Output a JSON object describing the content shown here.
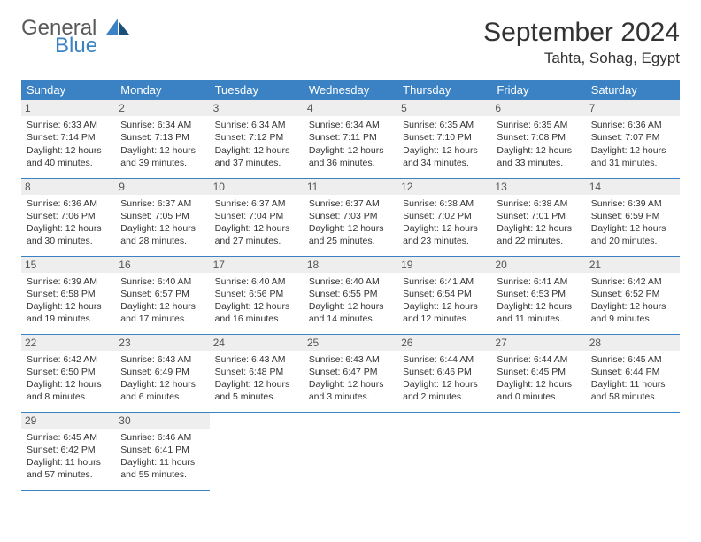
{
  "brand": {
    "line1": "General",
    "line2": "Blue"
  },
  "title": "September 2024",
  "location": "Tahta, Sohag, Egypt",
  "colors": {
    "header_bg": "#3b82c4",
    "header_text": "#ffffff",
    "daynum_bg": "#eeeeee",
    "body_text": "#333333",
    "logo_gray": "#5a5a5a",
    "logo_blue": "#3b82c4"
  },
  "typography": {
    "month_title_size": 30,
    "location_size": 17,
    "dow_size": 13,
    "cell_size": 10.5
  },
  "days_of_week": [
    "Sunday",
    "Monday",
    "Tuesday",
    "Wednesday",
    "Thursday",
    "Friday",
    "Saturday"
  ],
  "weeks": [
    [
      {
        "n": "1",
        "sunrise": "6:33 AM",
        "sunset": "7:14 PM",
        "dl_h": "12",
        "dl_m": "40"
      },
      {
        "n": "2",
        "sunrise": "6:34 AM",
        "sunset": "7:13 PM",
        "dl_h": "12",
        "dl_m": "39"
      },
      {
        "n": "3",
        "sunrise": "6:34 AM",
        "sunset": "7:12 PM",
        "dl_h": "12",
        "dl_m": "37"
      },
      {
        "n": "4",
        "sunrise": "6:34 AM",
        "sunset": "7:11 PM",
        "dl_h": "12",
        "dl_m": "36"
      },
      {
        "n": "5",
        "sunrise": "6:35 AM",
        "sunset": "7:10 PM",
        "dl_h": "12",
        "dl_m": "34"
      },
      {
        "n": "6",
        "sunrise": "6:35 AM",
        "sunset": "7:08 PM",
        "dl_h": "12",
        "dl_m": "33"
      },
      {
        "n": "7",
        "sunrise": "6:36 AM",
        "sunset": "7:07 PM",
        "dl_h": "12",
        "dl_m": "31"
      }
    ],
    [
      {
        "n": "8",
        "sunrise": "6:36 AM",
        "sunset": "7:06 PM",
        "dl_h": "12",
        "dl_m": "30"
      },
      {
        "n": "9",
        "sunrise": "6:37 AM",
        "sunset": "7:05 PM",
        "dl_h": "12",
        "dl_m": "28"
      },
      {
        "n": "10",
        "sunrise": "6:37 AM",
        "sunset": "7:04 PM",
        "dl_h": "12",
        "dl_m": "27"
      },
      {
        "n": "11",
        "sunrise": "6:37 AM",
        "sunset": "7:03 PM",
        "dl_h": "12",
        "dl_m": "25"
      },
      {
        "n": "12",
        "sunrise": "6:38 AM",
        "sunset": "7:02 PM",
        "dl_h": "12",
        "dl_m": "23"
      },
      {
        "n": "13",
        "sunrise": "6:38 AM",
        "sunset": "7:01 PM",
        "dl_h": "12",
        "dl_m": "22"
      },
      {
        "n": "14",
        "sunrise": "6:39 AM",
        "sunset": "6:59 PM",
        "dl_h": "12",
        "dl_m": "20"
      }
    ],
    [
      {
        "n": "15",
        "sunrise": "6:39 AM",
        "sunset": "6:58 PM",
        "dl_h": "12",
        "dl_m": "19"
      },
      {
        "n": "16",
        "sunrise": "6:40 AM",
        "sunset": "6:57 PM",
        "dl_h": "12",
        "dl_m": "17"
      },
      {
        "n": "17",
        "sunrise": "6:40 AM",
        "sunset": "6:56 PM",
        "dl_h": "12",
        "dl_m": "16"
      },
      {
        "n": "18",
        "sunrise": "6:40 AM",
        "sunset": "6:55 PM",
        "dl_h": "12",
        "dl_m": "14"
      },
      {
        "n": "19",
        "sunrise": "6:41 AM",
        "sunset": "6:54 PM",
        "dl_h": "12",
        "dl_m": "12"
      },
      {
        "n": "20",
        "sunrise": "6:41 AM",
        "sunset": "6:53 PM",
        "dl_h": "12",
        "dl_m": "11"
      },
      {
        "n": "21",
        "sunrise": "6:42 AM",
        "sunset": "6:52 PM",
        "dl_h": "12",
        "dl_m": "9"
      }
    ],
    [
      {
        "n": "22",
        "sunrise": "6:42 AM",
        "sunset": "6:50 PM",
        "dl_h": "12",
        "dl_m": "8"
      },
      {
        "n": "23",
        "sunrise": "6:43 AM",
        "sunset": "6:49 PM",
        "dl_h": "12",
        "dl_m": "6"
      },
      {
        "n": "24",
        "sunrise": "6:43 AM",
        "sunset": "6:48 PM",
        "dl_h": "12",
        "dl_m": "5"
      },
      {
        "n": "25",
        "sunrise": "6:43 AM",
        "sunset": "6:47 PM",
        "dl_h": "12",
        "dl_m": "3"
      },
      {
        "n": "26",
        "sunrise": "6:44 AM",
        "sunset": "6:46 PM",
        "dl_h": "12",
        "dl_m": "2"
      },
      {
        "n": "27",
        "sunrise": "6:44 AM",
        "sunset": "6:45 PM",
        "dl_h": "12",
        "dl_m": "0"
      },
      {
        "n": "28",
        "sunrise": "6:45 AM",
        "sunset": "6:44 PM",
        "dl_h": "11",
        "dl_m": "58"
      }
    ],
    [
      {
        "n": "29",
        "sunrise": "6:45 AM",
        "sunset": "6:42 PM",
        "dl_h": "11",
        "dl_m": "57"
      },
      {
        "n": "30",
        "sunrise": "6:46 AM",
        "sunset": "6:41 PM",
        "dl_h": "11",
        "dl_m": "55"
      },
      null,
      null,
      null,
      null,
      null
    ]
  ]
}
